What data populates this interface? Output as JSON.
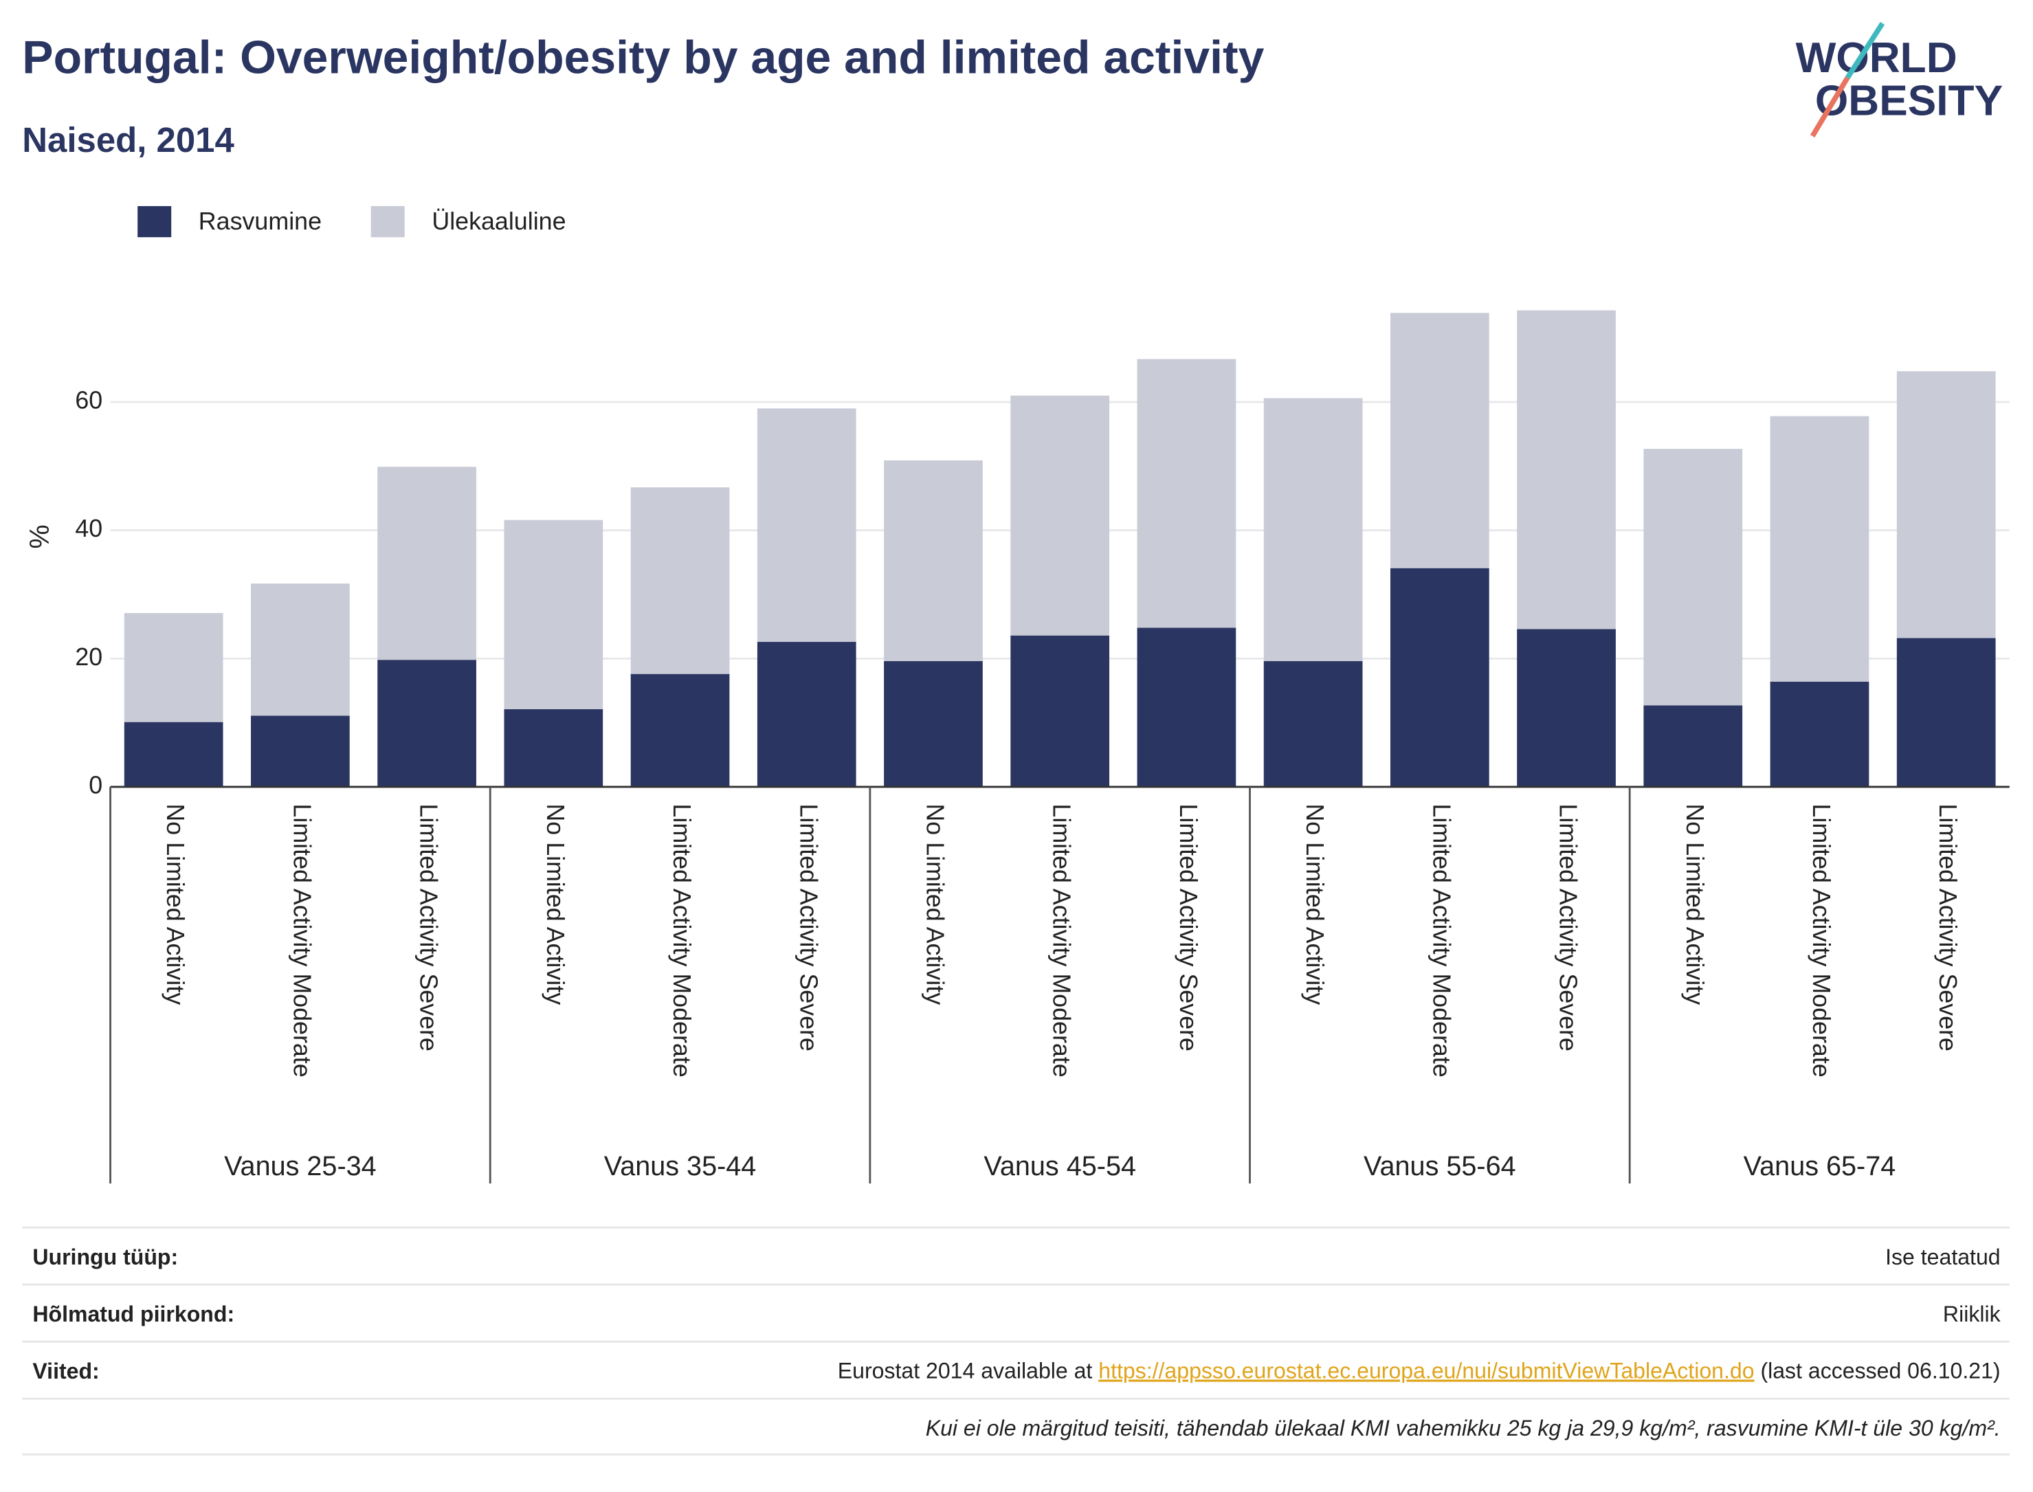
{
  "chart_data": {
    "type": "bar",
    "stacked": true,
    "title": "Portugal: Overweight/obesity by age and limited activity",
    "subtitle": "Naised, 2014",
    "logo": [
      "WORLD",
      "OBESITY"
    ],
    "y_label": "%",
    "categories": [
      "No Limited Activity",
      "Limited Activity Moderate",
      "Limited Activity Severe",
      "No Limited Activity",
      "Limited Activity Moderate",
      "Limited Activity Severe",
      "No Limited Activity",
      "Limited Activity Moderate",
      "Limited Activity Severe",
      "No Limited Activity",
      "Limited Activity Moderate",
      "Limited Activity Severe",
      "No Limited Activity",
      "Limited Activity Moderate",
      "Limited Activity Severe"
    ],
    "groups": [
      "Vanus 25-34",
      "Vanus 35-44",
      "Vanus 45-54",
      "Vanus 55-64",
      "Vanus 65-74"
    ],
    "series": [
      {
        "name": "Rasvumine",
        "color": "#2a3561",
        "values": [
          10.1,
          11.1,
          19.8,
          12.1,
          17.6,
          22.6,
          19.6,
          23.6,
          24.8,
          19.6,
          34.1,
          24.6,
          12.7,
          16.4,
          23.2
        ]
      },
      {
        "name": "Ülekaaluline",
        "color": "#c9cbd7",
        "values": [
          17.0,
          20.6,
          30.1,
          29.5,
          29.1,
          36.4,
          31.3,
          37.4,
          41.9,
          41.0,
          39.8,
          49.7,
          40.0,
          41.4,
          41.6
        ]
      }
    ],
    "ylim": [
      0,
      76
    ],
    "yticks": [
      0,
      20,
      40,
      60
    ],
    "grid": true,
    "legend": "top-left"
  },
  "footer": {
    "rows": [
      {
        "label": "Uuringu tüüp:",
        "value": "Ise teatatud"
      },
      {
        "label": "Hõlmatud piirkond:",
        "value": "Riiklik"
      },
      {
        "label": "Viited:",
        "value_parts": [
          "Eurostat 2014 available at ",
          "https://appsso.eurostat.ec.europa.eu/nui/submitViewTableAction.do",
          " (last accessed 06.10.21)"
        ]
      }
    ],
    "note": "Kui ei ole märgitud teisiti, tähendab ülekaal KMI vahemikku 25 kg ja 29,9 kg/m², rasvumine KMI-t üle 30 kg/m²."
  }
}
